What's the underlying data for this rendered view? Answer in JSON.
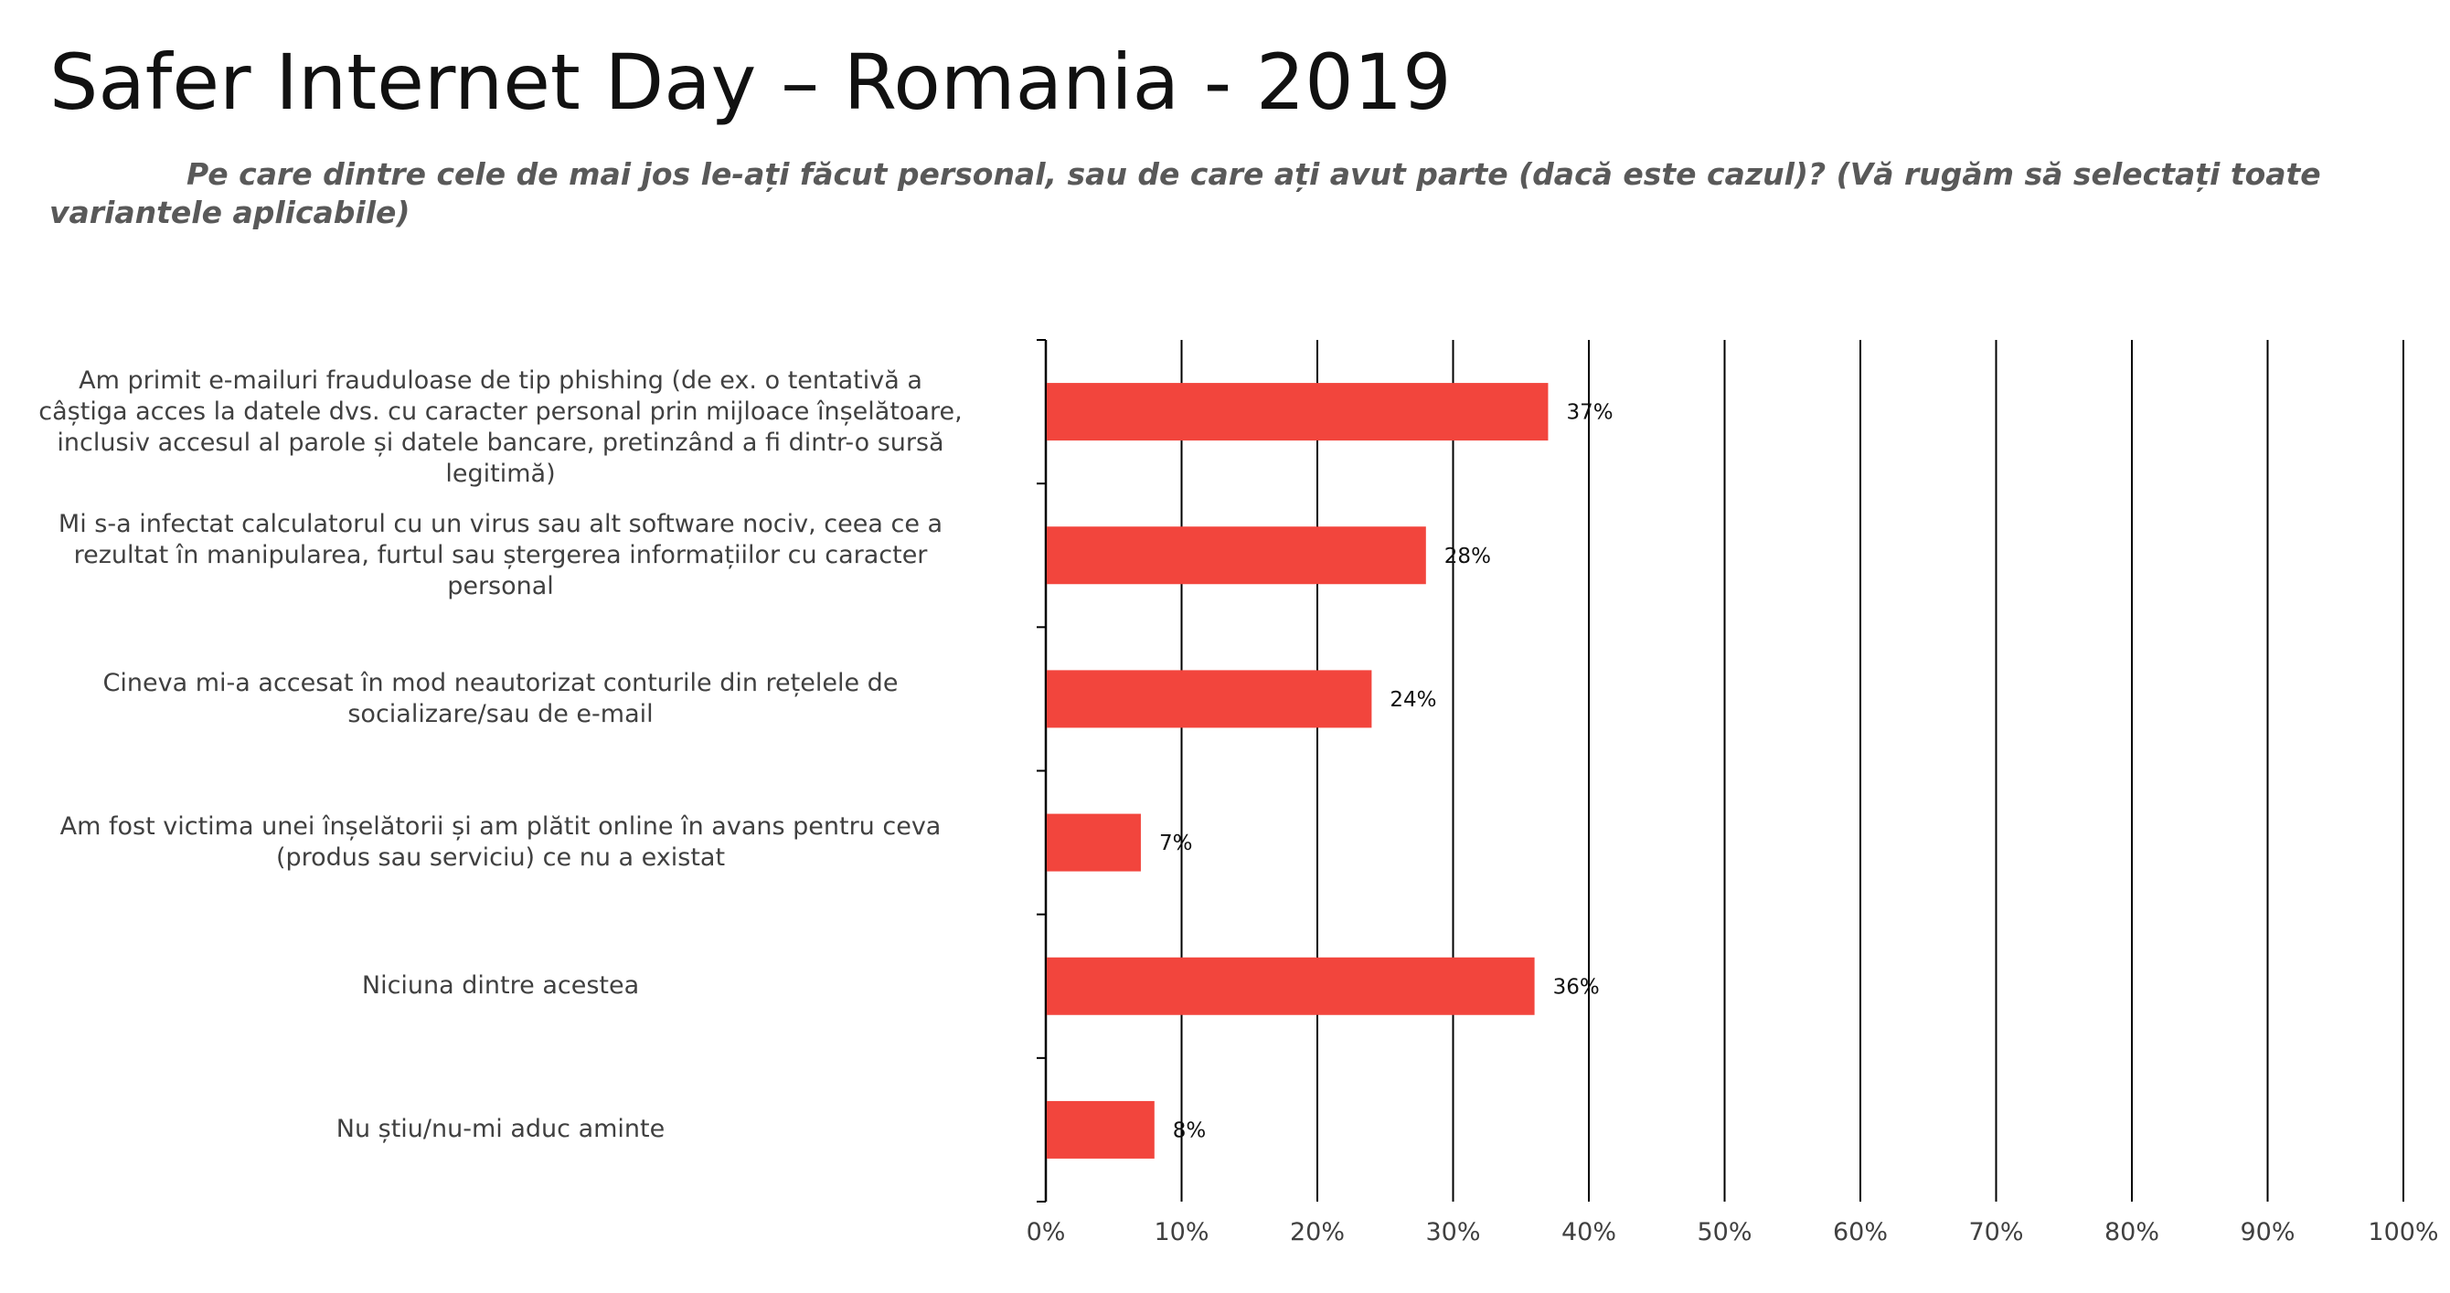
{
  "title": "Safer Internet Day – Romania - 2019",
  "subtitle": "Pe care dintre cele de mai jos le-ați făcut personal, sau de care ați avut parte (dacă este cazul)? (Vă rugăm să selectați toate variantele aplicabile)",
  "colors": {
    "bar": "#F2453D",
    "grid": "#000000",
    "title": "#111111",
    "subtitle": "#595959",
    "labels": "#404040"
  },
  "chart_data": {
    "type": "bar",
    "orientation": "horizontal",
    "categories": [
      "Am primit e-mailuri frauduloase de tip phishing (de ex. o tentativă a câștiga acces la datele dvs. cu caracter personal prin mijloace înșelătoare, inclusiv accesul al parole și datele bancare, pretinzând a fi dintr-o sursă legitimă)",
      "Mi s-a infectat calculatorul cu un virus sau alt software nociv, ceea ce a rezultat în manipularea, furtul sau ștergerea informațiilor cu caracter personal",
      "Cineva mi-a accesat în mod neautorizat conturile din rețelele de socializare/sau de e-mail",
      "Am fost victima unei înșelătorii și am plătit online în avans pentru ceva (produs sau serviciu) ce nu a existat",
      "Niciuna dintre acestea",
      "Nu știu/nu-mi aduc aminte"
    ],
    "values": [
      37,
      28,
      24,
      7,
      36,
      8
    ],
    "value_labels": [
      "37%",
      "28%",
      "24%",
      "7%",
      "36%",
      "8%"
    ],
    "xlim": [
      0,
      100
    ],
    "x_ticks": [
      "0%",
      "10%",
      "20%",
      "30%",
      "40%",
      "50%",
      "60%",
      "70%",
      "80%",
      "90%",
      "100%"
    ],
    "grid": true,
    "legend": "none"
  }
}
